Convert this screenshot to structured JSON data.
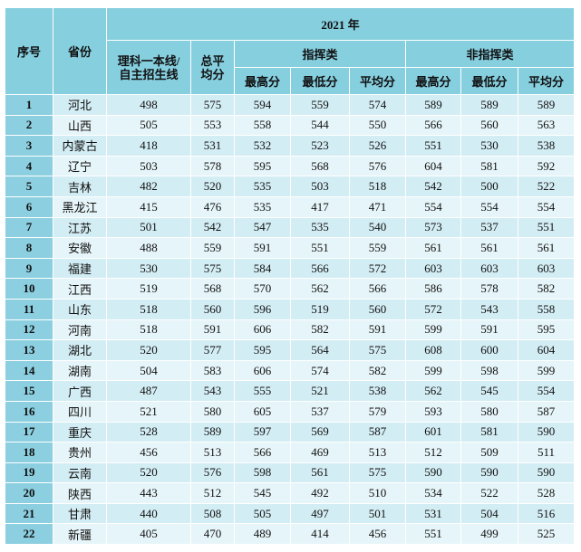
{
  "table": {
    "header": {
      "index": "序号",
      "province": "省份",
      "year": "2021 年",
      "cutoff": "理科一本线/自主招生线",
      "total_avg": "总平均分",
      "command": "指挥类",
      "non_command": "非指挥类",
      "command_sub": [
        "最高分",
        "最低分",
        "平均分"
      ],
      "non_command_sub": [
        "最高分",
        "最低分",
        "平均分"
      ]
    },
    "rows": [
      [
        1,
        "河北",
        498,
        575,
        594,
        559,
        574,
        589,
        589,
        589
      ],
      [
        2,
        "山西",
        505,
        553,
        558,
        544,
        550,
        566,
        560,
        563
      ],
      [
        3,
        "内蒙古",
        418,
        531,
        532,
        523,
        526,
        551,
        530,
        538
      ],
      [
        4,
        "辽宁",
        503,
        578,
        595,
        568,
        576,
        604,
        581,
        592
      ],
      [
        5,
        "吉林",
        482,
        520,
        535,
        503,
        518,
        542,
        500,
        522
      ],
      [
        6,
        "黑龙江",
        415,
        476,
        535,
        417,
        471,
        554,
        554,
        554
      ],
      [
        7,
        "江苏",
        501,
        542,
        547,
        535,
        540,
        573,
        537,
        551
      ],
      [
        8,
        "安徽",
        488,
        559,
        591,
        551,
        559,
        561,
        561,
        561
      ],
      [
        9,
        "福建",
        530,
        575,
        584,
        566,
        572,
        603,
        603,
        603
      ],
      [
        10,
        "江西",
        519,
        568,
        570,
        562,
        566,
        586,
        578,
        582
      ],
      [
        11,
        "山东",
        518,
        560,
        596,
        519,
        560,
        572,
        543,
        558
      ],
      [
        12,
        "河南",
        518,
        591,
        606,
        582,
        591,
        599,
        591,
        595
      ],
      [
        13,
        "湖北",
        520,
        577,
        595,
        564,
        575,
        608,
        600,
        604
      ],
      [
        14,
        "湖南",
        504,
        583,
        606,
        574,
        582,
        599,
        598,
        599
      ],
      [
        15,
        "广西",
        487,
        543,
        555,
        521,
        538,
        562,
        545,
        554
      ],
      [
        16,
        "四川",
        521,
        580,
        605,
        537,
        579,
        593,
        580,
        587
      ],
      [
        17,
        "重庆",
        528,
        589,
        597,
        569,
        587,
        601,
        581,
        590
      ],
      [
        18,
        "贵州",
        456,
        513,
        566,
        469,
        513,
        512,
        509,
        511
      ],
      [
        19,
        "云南",
        520,
        576,
        598,
        561,
        575,
        590,
        590,
        590
      ],
      [
        20,
        "陕西",
        443,
        512,
        545,
        492,
        510,
        534,
        522,
        528
      ],
      [
        21,
        "甘肃",
        440,
        508,
        505,
        497,
        501,
        531,
        504,
        516
      ],
      [
        22,
        "新疆",
        405,
        470,
        489,
        414,
        456,
        551,
        499,
        525
      ]
    ]
  }
}
